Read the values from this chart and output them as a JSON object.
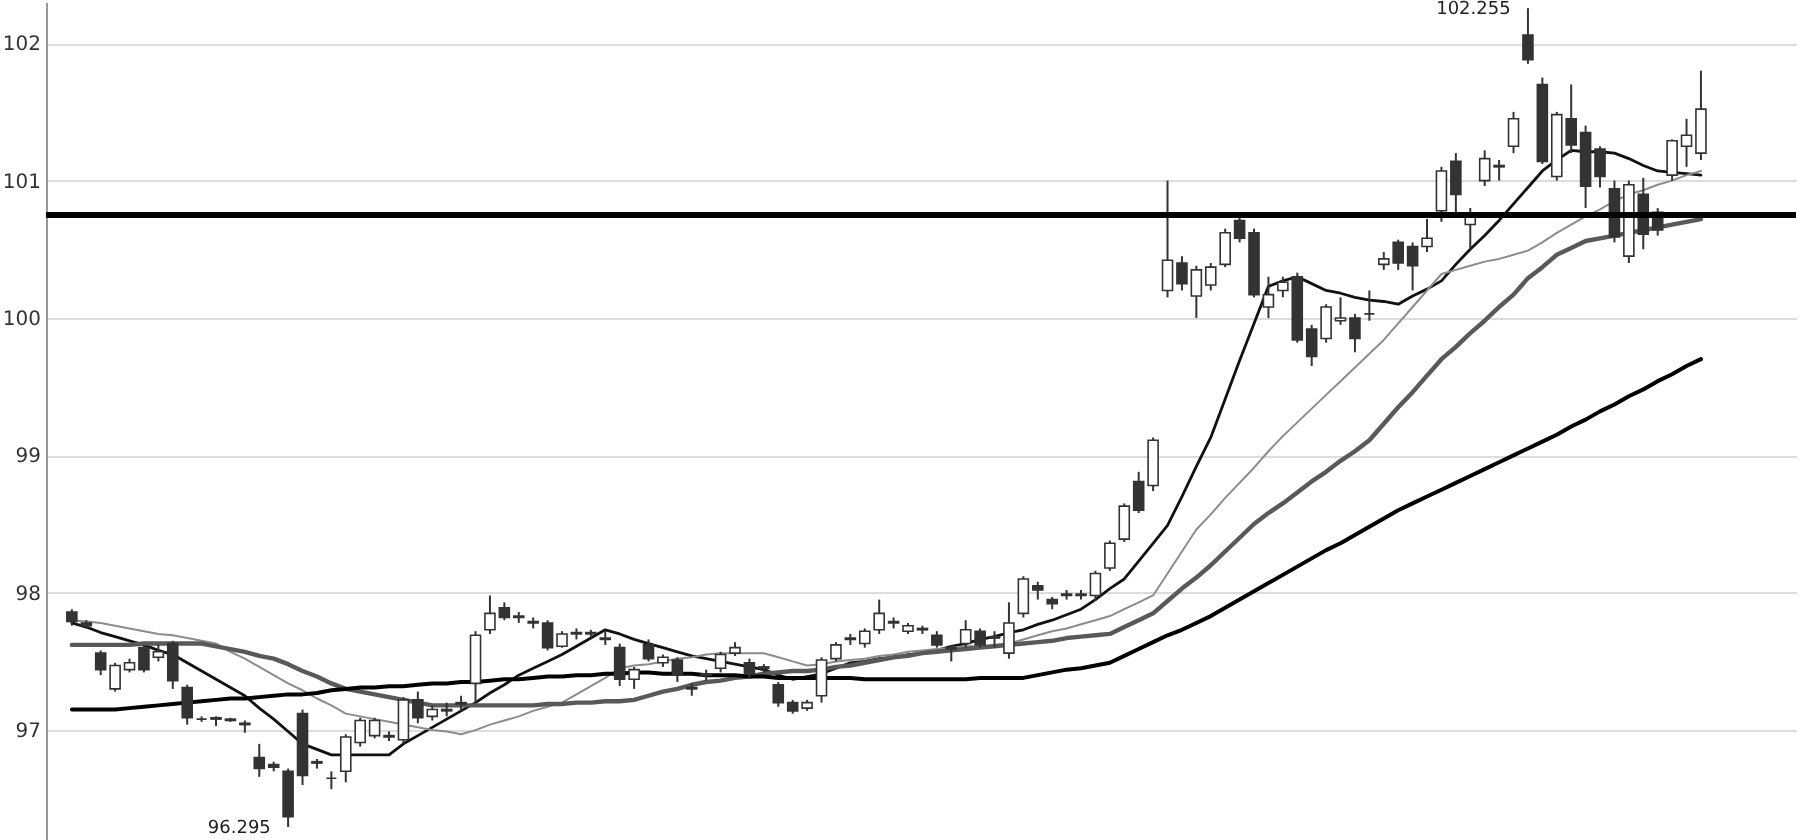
{
  "chart_data": {
    "type": "candlestick",
    "categories": [
      null,
      null,
      null,
      null,
      null,
      null,
      null,
      null,
      null,
      null,
      null,
      null,
      null,
      null,
      null,
      null,
      null,
      null,
      null,
      null,
      null,
      null,
      null,
      null,
      null,
      null,
      null,
      null,
      null,
      null,
      null,
      null,
      null,
      null,
      null,
      null,
      null,
      null,
      null,
      null,
      null,
      null,
      null,
      null,
      null,
      null,
      null,
      null,
      null,
      null,
      null,
      null,
      null,
      null,
      null,
      null,
      null,
      null,
      null,
      null,
      null,
      null,
      null,
      null,
      null,
      null,
      null,
      null,
      null,
      null,
      null,
      null,
      null,
      null,
      null,
      null,
      null,
      null,
      null,
      null,
      null,
      null,
      null,
      null,
      null,
      null,
      null,
      null,
      null,
      null,
      null,
      null,
      null,
      null,
      null,
      null,
      null,
      null,
      null,
      null,
      null,
      null,
      null,
      null,
      null,
      null,
      null,
      null,
      null,
      null,
      null,
      null,
      null,
      null
    ],
    "ohlc": [
      [
        97.86,
        97.88,
        97.76,
        97.79
      ],
      [
        97.78,
        97.8,
        97.74,
        97.76
      ],
      [
        97.56,
        97.58,
        97.4,
        97.44
      ],
      [
        97.3,
        97.49,
        97.28,
        97.47
      ],
      [
        97.44,
        97.52,
        97.42,
        97.49
      ],
      [
        97.6,
        97.62,
        97.42,
        97.44
      ],
      [
        97.53,
        97.62,
        97.5,
        97.57
      ],
      [
        97.63,
        97.65,
        97.3,
        97.36
      ],
      [
        97.31,
        97.33,
        97.04,
        97.09
      ],
      [
        97.08,
        97.1,
        97.06,
        97.08
      ],
      [
        97.09,
        97.1,
        97.03,
        97.08
      ],
      [
        97.08,
        97.09,
        97.06,
        97.07
      ],
      [
        97.05,
        97.07,
        96.98,
        97.04
      ],
      [
        96.8,
        96.9,
        96.66,
        96.72
      ],
      [
        96.75,
        96.77,
        96.7,
        96.73
      ],
      [
        96.7,
        96.72,
        96.295,
        96.37
      ],
      [
        97.12,
        97.15,
        96.6,
        96.67
      ],
      [
        96.77,
        96.79,
        96.72,
        96.76
      ],
      [
        96.65,
        96.7,
        96.57,
        96.65
      ],
      [
        96.7,
        96.97,
        96.62,
        96.95
      ],
      [
        96.91,
        97.09,
        96.88,
        97.07
      ],
      [
        96.96,
        97.09,
        96.94,
        97.07
      ],
      [
        96.95,
        96.99,
        96.92,
        96.96
      ],
      [
        96.93,
        97.24,
        96.9,
        97.22
      ],
      [
        97.22,
        97.28,
        97.05,
        97.09
      ],
      [
        97.1,
        97.18,
        97.07,
        97.15
      ],
      [
        97.14,
        97.2,
        97.1,
        97.15
      ],
      [
        97.19,
        97.25,
        97.14,
        97.2
      ],
      [
        97.34,
        97.72,
        97.2,
        97.69
      ],
      [
        97.73,
        97.98,
        97.7,
        97.85
      ],
      [
        97.89,
        97.93,
        97.8,
        97.82
      ],
      [
        97.82,
        97.86,
        97.78,
        97.83
      ],
      [
        97.79,
        97.82,
        97.74,
        97.78
      ],
      [
        97.78,
        97.8,
        97.58,
        97.6
      ],
      [
        97.61,
        97.72,
        97.6,
        97.7
      ],
      [
        97.7,
        97.74,
        97.66,
        97.71
      ],
      [
        97.7,
        97.73,
        97.67,
        97.71
      ],
      [
        97.67,
        97.72,
        97.62,
        97.66
      ],
      [
        97.6,
        97.63,
        97.32,
        97.37
      ],
      [
        97.37,
        97.46,
        97.3,
        97.44
      ],
      [
        97.62,
        97.66,
        97.5,
        97.52
      ],
      [
        97.49,
        97.55,
        97.46,
        97.53
      ],
      [
        97.51,
        97.53,
        97.35,
        97.4
      ],
      [
        97.3,
        97.34,
        97.25,
        97.31
      ],
      [
        97.4,
        97.44,
        97.36,
        97.41
      ],
      [
        97.45,
        97.57,
        97.42,
        97.55
      ],
      [
        97.56,
        97.64,
        97.54,
        97.6
      ],
      [
        97.49,
        97.52,
        97.38,
        97.41
      ],
      [
        97.45,
        97.48,
        97.42,
        97.46
      ],
      [
        97.33,
        97.35,
        97.17,
        97.2
      ],
      [
        97.2,
        97.22,
        97.12,
        97.14
      ],
      [
        97.16,
        97.22,
        97.14,
        97.2
      ],
      [
        97.25,
        97.53,
        97.2,
        97.51
      ],
      [
        97.52,
        97.64,
        97.5,
        97.62
      ],
      [
        97.66,
        97.7,
        97.62,
        97.67
      ],
      [
        97.63,
        97.74,
        97.6,
        97.72
      ],
      [
        97.73,
        97.95,
        97.7,
        97.85
      ],
      [
        97.78,
        97.82,
        97.74,
        97.79
      ],
      [
        97.72,
        97.78,
        97.7,
        97.76
      ],
      [
        97.73,
        97.76,
        97.7,
        97.74
      ],
      [
        97.69,
        97.72,
        97.6,
        97.62
      ],
      [
        97.59,
        97.62,
        97.5,
        97.6
      ],
      [
        97.63,
        97.8,
        97.6,
        97.73
      ],
      [
        97.72,
        97.74,
        97.6,
        97.62
      ],
      [
        97.68,
        97.72,
        97.6,
        97.67
      ],
      [
        97.56,
        97.93,
        97.52,
        97.78
      ],
      [
        97.85,
        98.12,
        97.82,
        98.1
      ],
      [
        98.05,
        98.08,
        97.95,
        98.02
      ],
      [
        97.95,
        97.97,
        97.88,
        97.92
      ],
      [
        97.98,
        98.02,
        97.95,
        97.99
      ],
      [
        97.99,
        98.02,
        97.95,
        97.98
      ],
      [
        97.98,
        98.16,
        97.94,
        98.14
      ],
      [
        98.18,
        98.38,
        98.16,
        98.36
      ],
      [
        98.39,
        98.65,
        98.37,
        98.63
      ],
      [
        98.81,
        98.88,
        98.58,
        98.6
      ],
      [
        98.78,
        99.13,
        98.74,
        99.11
      ],
      [
        100.2,
        101.0,
        100.15,
        100.42
      ],
      [
        100.4,
        100.45,
        100.2,
        100.25
      ],
      [
        100.16,
        100.38,
        100.0,
        100.35
      ],
      [
        100.24,
        100.4,
        100.2,
        100.37
      ],
      [
        100.39,
        100.65,
        100.37,
        100.62
      ],
      [
        100.71,
        100.74,
        100.55,
        100.58
      ],
      [
        100.62,
        100.65,
        100.15,
        100.17
      ],
      [
        100.08,
        100.3,
        100.0,
        100.17
      ],
      [
        100.2,
        100.3,
        100.15,
        100.26
      ],
      [
        100.3,
        100.33,
        99.82,
        99.84
      ],
      [
        99.92,
        99.95,
        99.65,
        99.72
      ],
      [
        99.85,
        100.1,
        99.82,
        100.08
      ],
      [
        99.98,
        100.15,
        99.95,
        100.0
      ],
      [
        100.0,
        100.03,
        99.75,
        99.85
      ],
      [
        100.03,
        100.2,
        99.98,
        100.03
      ],
      [
        100.39,
        100.48,
        100.35,
        100.43
      ],
      [
        100.55,
        100.57,
        100.35,
        100.4
      ],
      [
        100.52,
        100.55,
        100.2,
        100.38
      ],
      [
        100.52,
        100.72,
        100.48,
        100.58
      ],
      [
        100.78,
        101.1,
        100.7,
        101.07
      ],
      [
        101.14,
        101.2,
        100.75,
        100.9
      ],
      [
        100.68,
        100.8,
        100.5,
        100.74
      ],
      [
        101.0,
        101.22,
        100.96,
        101.16
      ],
      [
        101.1,
        101.15,
        101.0,
        101.11
      ],
      [
        101.25,
        101.5,
        101.2,
        101.45
      ],
      [
        102.06,
        102.255,
        101.85,
        101.88
      ],
      [
        101.7,
        101.75,
        101.12,
        101.14
      ],
      [
        101.03,
        101.5,
        101.0,
        101.48
      ],
      [
        101.45,
        101.7,
        101.2,
        101.26
      ],
      [
        101.35,
        101.4,
        100.8,
        100.96
      ],
      [
        101.23,
        101.25,
        100.95,
        101.03
      ],
      [
        100.94,
        101.0,
        100.55,
        100.59
      ],
      [
        100.45,
        101.0,
        100.4,
        100.97
      ],
      [
        100.9,
        101.02,
        100.5,
        100.61
      ],
      [
        100.77,
        100.8,
        100.6,
        100.64
      ],
      [
        101.04,
        101.3,
        101.0,
        101.29
      ],
      [
        101.25,
        101.45,
        101.1,
        101.33
      ],
      [
        101.2,
        101.8,
        101.15,
        101.52
      ]
    ],
    "series": [
      {
        "type": "line",
        "color": "#111111",
        "values": [
          97.78,
          97.75,
          97.71,
          97.68,
          97.65,
          97.62,
          97.58,
          97.55,
          97.49,
          97.43,
          97.37,
          97.31,
          97.25,
          97.16,
          97.08,
          96.99,
          96.9,
          96.86,
          96.82,
          96.82,
          96.82,
          96.82,
          96.82,
          96.9,
          96.96,
          97.02,
          97.08,
          97.14,
          97.2,
          97.27,
          97.33,
          97.4,
          97.45,
          97.5,
          97.55,
          97.61,
          97.67,
          97.73,
          97.7,
          97.66,
          97.63,
          97.6,
          97.57,
          97.54,
          97.52,
          97.5,
          97.48,
          97.46,
          97.44,
          97.4,
          97.37,
          97.39,
          97.41,
          97.45,
          97.49,
          97.5,
          97.52,
          97.53,
          97.55,
          97.56,
          97.58,
          97.61,
          97.63,
          97.66,
          97.68,
          97.71,
          97.73,
          97.77,
          97.8,
          97.84,
          97.88,
          97.95,
          98.03,
          98.1,
          98.23,
          98.36,
          98.49,
          98.7,
          98.92,
          99.13,
          99.41,
          99.69,
          99.96,
          100.23,
          100.27,
          100.3,
          100.25,
          100.2,
          100.18,
          100.15,
          100.13,
          100.12,
          100.1,
          100.16,
          100.21,
          100.27,
          100.39,
          100.5,
          100.6,
          100.71,
          100.83,
          100.95,
          101.07,
          101.15,
          101.22,
          101.21,
          101.21,
          101.2,
          101.16,
          101.11,
          101.07,
          101.06,
          101.05,
          101.04
        ]
      },
      {
        "type": "line",
        "color": "#8c8c8c",
        "values": [
          97.8,
          97.79,
          97.78,
          97.76,
          97.74,
          97.72,
          97.7,
          97.69,
          97.67,
          97.65,
          97.63,
          97.57,
          97.52,
          97.46,
          97.4,
          97.34,
          97.29,
          97.23,
          97.18,
          97.12,
          97.1,
          97.08,
          97.06,
          97.04,
          97.02,
          97.0,
          96.99,
          96.97,
          97.0,
          97.04,
          97.07,
          97.1,
          97.14,
          97.17,
          97.2,
          97.26,
          97.32,
          97.38,
          97.45,
          97.47,
          97.48,
          97.5,
          97.52,
          97.53,
          97.55,
          97.56,
          97.56,
          97.56,
          97.56,
          97.53,
          97.5,
          97.47,
          97.48,
          97.5,
          97.51,
          97.52,
          97.54,
          97.55,
          97.57,
          97.58,
          97.59,
          97.6,
          97.61,
          97.61,
          97.62,
          97.63,
          97.66,
          97.69,
          97.72,
          97.74,
          97.77,
          97.8,
          97.83,
          97.88,
          97.93,
          97.98,
          98.14,
          98.3,
          98.46,
          98.57,
          98.69,
          98.8,
          98.91,
          99.03,
          99.14,
          99.24,
          99.34,
          99.44,
          99.54,
          99.64,
          99.74,
          99.84,
          99.96,
          100.08,
          100.2,
          100.32,
          100.35,
          100.38,
          100.41,
          100.43,
          100.46,
          100.49,
          100.55,
          100.62,
          100.68,
          100.74,
          100.79,
          100.85,
          100.9,
          100.93,
          100.97,
          101.0,
          101.04,
          101.07
        ]
      },
      {
        "type": "line",
        "color": "#595959",
        "values": [
          97.62,
          97.62,
          97.62,
          97.62,
          97.62,
          97.63,
          97.63,
          97.63,
          97.63,
          97.63,
          97.61,
          97.59,
          97.57,
          97.54,
          97.52,
          97.48,
          97.43,
          97.39,
          97.34,
          97.3,
          97.28,
          97.26,
          97.24,
          97.22,
          97.2,
          97.18,
          97.18,
          97.18,
          97.18,
          97.18,
          97.18,
          97.18,
          97.18,
          97.19,
          97.19,
          97.2,
          97.2,
          97.21,
          97.21,
          97.22,
          97.25,
          97.28,
          97.3,
          97.33,
          97.35,
          97.36,
          97.38,
          97.39,
          97.41,
          97.42,
          97.43,
          97.43,
          97.44,
          97.46,
          97.47,
          97.49,
          97.51,
          97.53,
          97.54,
          97.56,
          97.57,
          97.58,
          97.59,
          97.6,
          97.61,
          97.62,
          97.63,
          97.64,
          97.65,
          97.67,
          97.68,
          97.69,
          97.7,
          97.75,
          97.8,
          97.85,
          97.94,
          98.03,
          98.11,
          98.2,
          98.3,
          98.4,
          98.5,
          98.58,
          98.65,
          98.73,
          98.81,
          98.88,
          98.96,
          99.03,
          99.11,
          99.23,
          99.35,
          99.46,
          99.58,
          99.7,
          99.79,
          99.89,
          99.98,
          100.08,
          100.17,
          100.29,
          100.37,
          100.46,
          100.51,
          100.56,
          100.58,
          100.6,
          100.62,
          100.64,
          100.66,
          100.68,
          100.7,
          100.72
        ]
      },
      {
        "type": "line",
        "color": "#000000",
        "values": [
          97.15,
          97.15,
          97.15,
          97.15,
          97.16,
          97.17,
          97.18,
          97.19,
          97.2,
          97.21,
          97.22,
          97.23,
          97.23,
          97.24,
          97.25,
          97.26,
          97.26,
          97.27,
          97.29,
          97.3,
          97.31,
          97.31,
          97.32,
          97.32,
          97.33,
          97.34,
          97.34,
          97.35,
          97.35,
          97.36,
          97.37,
          97.37,
          97.38,
          97.39,
          97.39,
          97.4,
          97.4,
          97.41,
          97.41,
          97.42,
          97.42,
          97.41,
          97.41,
          97.41,
          97.4,
          97.4,
          97.4,
          97.39,
          97.39,
          97.38,
          97.38,
          97.38,
          97.38,
          97.38,
          97.38,
          97.37,
          97.37,
          97.37,
          97.37,
          97.37,
          97.37,
          97.37,
          97.37,
          97.38,
          97.38,
          97.38,
          97.38,
          97.4,
          97.42,
          97.44,
          97.45,
          97.47,
          97.49,
          97.54,
          97.59,
          97.64,
          97.69,
          97.73,
          97.78,
          97.83,
          97.89,
          97.95,
          98.01,
          98.07,
          98.13,
          98.19,
          98.25,
          98.31,
          98.36,
          98.42,
          98.48,
          98.54,
          98.6,
          98.65,
          98.7,
          98.75,
          98.8,
          98.85,
          98.9,
          98.95,
          99.0,
          99.05,
          99.1,
          99.15,
          99.21,
          99.26,
          99.32,
          99.37,
          99.43,
          99.48,
          99.54,
          99.59,
          99.65,
          99.7
        ]
      }
    ],
    "ylim": [
      96.2,
      102.3
    ],
    "yticks": [
      97,
      98,
      99,
      100,
      101,
      102
    ],
    "grid": "y",
    "tick_labels": "y",
    "ref_lines": [
      {
        "axis": "y",
        "value": 100.75,
        "color": "#000000"
      }
    ],
    "annotations": [
      "102.255",
      "96.295"
    ]
  }
}
